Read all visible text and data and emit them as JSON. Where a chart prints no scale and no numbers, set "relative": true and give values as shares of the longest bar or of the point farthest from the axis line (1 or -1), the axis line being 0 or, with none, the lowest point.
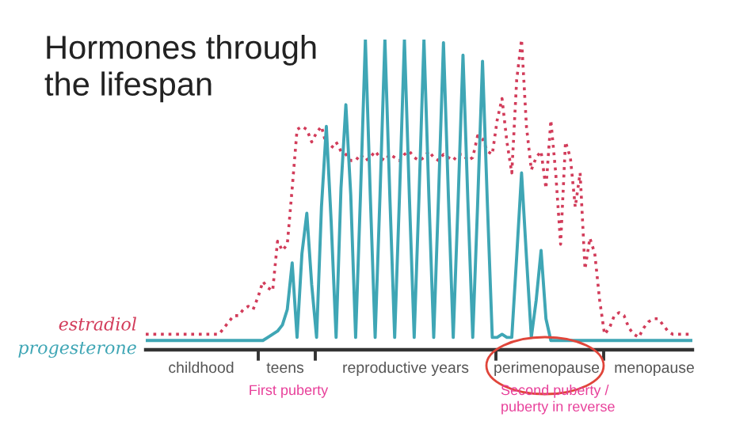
{
  "chart_data": {
    "type": "line",
    "title": "Hormones through\nthe lifespan",
    "relative": true,
    "grid": false,
    "legend": false,
    "categories": [
      null,
      null,
      null,
      null,
      null,
      null,
      null,
      null,
      null,
      null,
      null,
      null,
      null,
      null,
      null,
      null,
      null,
      null,
      null,
      null,
      null,
      null,
      null,
      null,
      null,
      null,
      null,
      null,
      null,
      null,
      null,
      null,
      null,
      null,
      null,
      null,
      null,
      null,
      null,
      null,
      null,
      null,
      null,
      null,
      null,
      null,
      null,
      null,
      null,
      null,
      null,
      null,
      null,
      null,
      null,
      null,
      null,
      null,
      null,
      null,
      null,
      null,
      null,
      null,
      null,
      null,
      null,
      null,
      null,
      null,
      null,
      null,
      null,
      null,
      null,
      null,
      null,
      null,
      null,
      null,
      null,
      null,
      null,
      null,
      null,
      null,
      null,
      null,
      null,
      null,
      null,
      null,
      null,
      null,
      null,
      null,
      null,
      null,
      null,
      null,
      null,
      null,
      null,
      null,
      null,
      null,
      null,
      null,
      null,
      null,
      null,
      null,
      null
    ],
    "series": [
      {
        "name": "estradiol",
        "color": "#d23c5a",
        "line_style": "dotted",
        "values": [
          0.05,
          0.05,
          0.05,
          0.05,
          0.05,
          0.05,
          0.05,
          0.05,
          0.05,
          0.05,
          0.05,
          0.05,
          0.05,
          0.05,
          0.05,
          0.05,
          0.07,
          0.09,
          0.11,
          0.11,
          0.13,
          0.14,
          0.13,
          0.17,
          0.22,
          0.2,
          0.19,
          0.35,
          0.32,
          0.34,
          0.52,
          0.71,
          0.72,
          0.71,
          0.67,
          0.7,
          0.72,
          0.66,
          0.65,
          0.67,
          0.64,
          0.63,
          0.61,
          0.61,
          0.63,
          0.61,
          0.62,
          0.64,
          0.62,
          0.61,
          0.63,
          0.62,
          0.61,
          0.63,
          0.64,
          0.62,
          0.61,
          0.62,
          0.64,
          0.62,
          0.61,
          0.63,
          0.62,
          0.61,
          0.63,
          0.63,
          0.61,
          0.62,
          0.69,
          0.68,
          0.64,
          0.63,
          0.74,
          0.81,
          0.67,
          0.57,
          0.87,
          1.0,
          0.72,
          0.58,
          0.62,
          0.64,
          0.52,
          0.74,
          0.57,
          0.34,
          0.67,
          0.62,
          0.46,
          0.57,
          0.26,
          0.36,
          0.31,
          0.16,
          0.05,
          0.07,
          0.11,
          0.12,
          0.11,
          0.07,
          0.05,
          0.04,
          0.07,
          0.09,
          0.1,
          0.1,
          0.08,
          0.06,
          0.05,
          0.05,
          0.05,
          0.05,
          0.05
        ]
      },
      {
        "name": "progesterone",
        "color": "#3fa6b5",
        "line_style": "solid",
        "values": [
          0.03,
          0.03,
          0.03,
          0.03,
          0.03,
          0.03,
          0.03,
          0.03,
          0.03,
          0.03,
          0.03,
          0.03,
          0.03,
          0.03,
          0.03,
          0.03,
          0.03,
          0.03,
          0.03,
          0.03,
          0.03,
          0.03,
          0.03,
          0.03,
          0.03,
          0.04,
          0.05,
          0.06,
          0.08,
          0.13,
          0.28,
          0.04,
          0.31,
          0.44,
          0.21,
          0.04,
          0.46,
          0.72,
          0.41,
          0.04,
          0.52,
          0.79,
          0.5,
          0.04,
          0.5,
          1.0,
          0.5,
          0.04,
          0.5,
          1.0,
          0.5,
          0.04,
          0.5,
          1.0,
          0.5,
          0.04,
          0.5,
          1.0,
          0.5,
          0.04,
          0.5,
          0.99,
          0.5,
          0.04,
          0.48,
          0.95,
          0.48,
          0.04,
          0.47,
          0.93,
          0.47,
          0.04,
          0.04,
          0.05,
          0.04,
          0.04,
          0.3,
          0.57,
          0.3,
          0.04,
          0.16,
          0.32,
          0.1,
          0.03,
          0.03,
          0.03,
          0.03,
          0.03,
          0.03,
          0.03,
          0.03,
          0.03,
          0.03,
          0.03,
          0.03,
          0.03,
          0.03,
          0.03,
          0.03,
          0.03,
          0.03,
          0.03,
          0.03,
          0.03,
          0.03,
          0.03,
          0.03,
          0.03,
          0.03,
          0.03,
          0.03,
          0.03,
          0.03
        ]
      }
    ],
    "annotations": [
      "childhood",
      "teens",
      "reproductive years",
      "perimenopause",
      "menopause",
      "First puberty",
      "Second puberty /\npuberty in reverse"
    ]
  }
}
